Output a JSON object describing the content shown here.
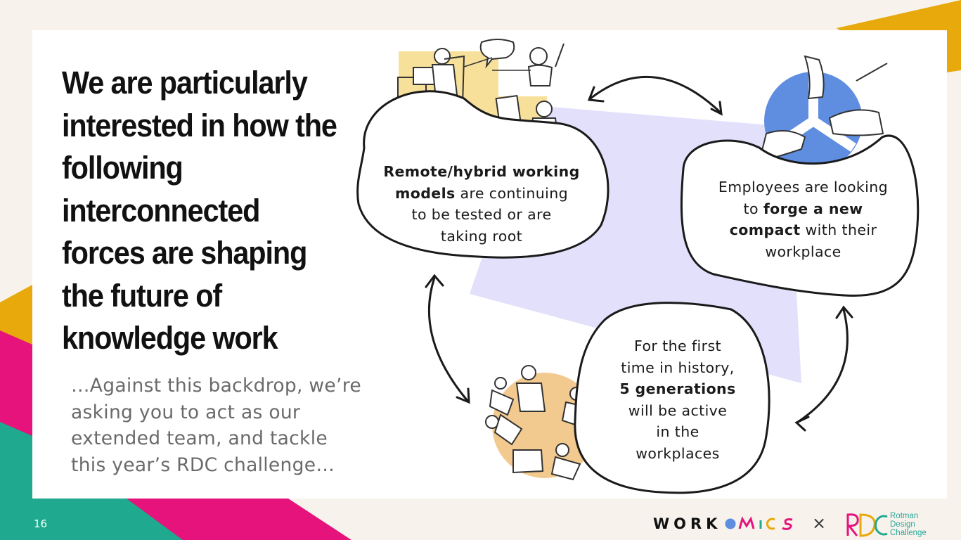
{
  "slide": {
    "page_number": "16",
    "heading_lines": [
      "We are particularly",
      "interested in how the",
      "following",
      "interconnected",
      "forces are shaping",
      "the future of",
      "knowledge work"
    ],
    "subtext_lines": [
      "…Against this backdrop, we’re",
      "asking you to act as our",
      "extended team, and tackle",
      "this year’s RDC challenge…"
    ]
  },
  "forces": {
    "remote": {
      "bold_lines": [
        "Remote/hybrid working"
      ],
      "bold_prefix": "models",
      "suffix": " are continuing",
      "rest_lines": [
        "to be tested or are",
        "taking root"
      ]
    },
    "compact": {
      "line1": "Employees are looking",
      "line2_pre": "to ",
      "line2_bold": "forge a new",
      "line3_bold": "compact",
      "line3_post": " with their",
      "line4": "workplace"
    },
    "generations": {
      "line1": "For the first",
      "line2": "time in history,",
      "line3_bold": "5 generations",
      "line4": "will be active",
      "line5": "in the",
      "line6": "workplaces"
    }
  },
  "footer": {
    "workomics_prefix": "WORK",
    "workomics_suffix": "MICS",
    "times_symbol": "×",
    "rdc_mark": "RDC",
    "rdc_words": [
      "Rotman",
      "Design",
      "Challenge"
    ]
  },
  "colors": {
    "yellow": "#e8a90c",
    "pink": "#e5137b",
    "teal": "#1fa98e",
    "lavender": "#e3e0fb",
    "blue": "#5f8de0",
    "sand": "#f2c98e",
    "highlight": "#f7e19a"
  }
}
